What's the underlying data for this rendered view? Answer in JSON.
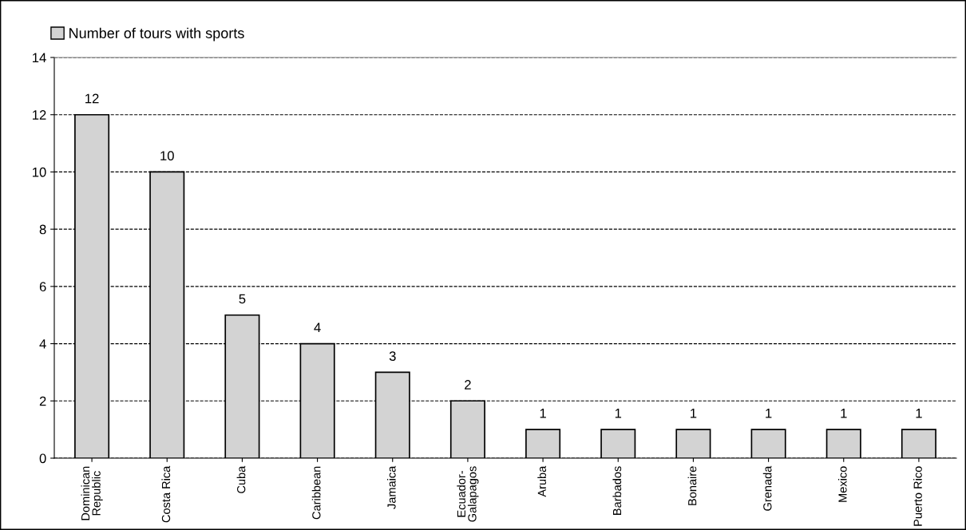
{
  "chart_data": {
    "type": "bar",
    "categories": [
      "Dominican\nRepublic",
      "Costa Rica",
      "Cuba",
      "Caribbean",
      "Jamaica",
      "Ecuador-\nGalapagos",
      "Aruba",
      "Barbados",
      "Bonaire",
      "Grenada",
      "Mexico",
      "Puerto Rico"
    ],
    "series": [
      {
        "name": "Number of tours with sports",
        "color": "#d3d3d3",
        "values": [
          12,
          10,
          5,
          4,
          3,
          2,
          1,
          1,
          1,
          1,
          1,
          1
        ]
      }
    ],
    "ylim": [
      0,
      14
    ],
    "yticks": [
      0,
      2,
      4,
      6,
      8,
      10,
      12,
      14
    ],
    "grid": "y",
    "legend": "top left",
    "data_labels": true
  }
}
